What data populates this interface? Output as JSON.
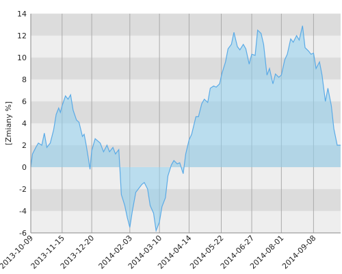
{
  "chart_data": {
    "type": "area",
    "y_label": "[Zmiany %]",
    "x": [
      "2013-10-09",
      "2013-10-11",
      "2013-10-15",
      "2013-10-18",
      "2013-10-22",
      "2013-10-25",
      "2013-10-28",
      "2013-11-01",
      "2013-11-05",
      "2013-11-08",
      "2013-11-11",
      "2013-11-13",
      "2013-11-15",
      "2013-11-19",
      "2013-11-22",
      "2013-11-25",
      "2013-11-28",
      "2013-12-02",
      "2013-12-05",
      "2013-12-09",
      "2013-12-11",
      "2013-12-13",
      "2013-12-16",
      "2013-12-18",
      "2013-12-20",
      "2013-12-24",
      "2013-12-30",
      "2014-01-03",
      "2014-01-07",
      "2014-01-10",
      "2014-01-14",
      "2014-01-17",
      "2014-01-21",
      "2014-01-24",
      "2014-01-28",
      "2014-01-31",
      "2014-02-03",
      "2014-02-06",
      "2014-02-10",
      "2014-02-13",
      "2014-02-17",
      "2014-02-20",
      "2014-02-24",
      "2014-02-27",
      "2014-03-03",
      "2014-03-06",
      "2014-03-10",
      "2014-03-13",
      "2014-03-17",
      "2014-03-20",
      "2014-03-24",
      "2014-03-27",
      "2014-03-31",
      "2014-04-03",
      "2014-04-07",
      "2014-04-10",
      "2014-04-14",
      "2014-04-17",
      "2014-04-22",
      "2014-04-25",
      "2014-04-29",
      "2014-05-02",
      "2014-05-06",
      "2014-05-09",
      "2014-05-13",
      "2014-05-16",
      "2014-05-20",
      "2014-05-23",
      "2014-05-27",
      "2014-05-30",
      "2014-06-03",
      "2014-06-06",
      "2014-06-10",
      "2014-06-13",
      "2014-06-17",
      "2014-06-20",
      "2014-06-24",
      "2014-06-27",
      "2014-07-01",
      "2014-07-04",
      "2014-07-08",
      "2014-07-11",
      "2014-07-15",
      "2014-07-18",
      "2014-07-22",
      "2014-07-25",
      "2014-07-29",
      "2014-08-01",
      "2014-08-05",
      "2014-08-08",
      "2014-08-12",
      "2014-08-15",
      "2014-08-19",
      "2014-08-22",
      "2014-08-26",
      "2014-08-29",
      "2014-09-02",
      "2014-09-05",
      "2014-09-08",
      "2014-09-11",
      "2014-09-15",
      "2014-09-18",
      "2014-09-22",
      "2014-09-25",
      "2014-09-29",
      "2014-10-02",
      "2014-10-06",
      "2014-10-10"
    ],
    "series": [
      {
        "color": "#5aaae6",
        "values": [
          0,
          1.2,
          1.8,
          2.2,
          2.0,
          3.1,
          1.8,
          2.2,
          3.4,
          4.8,
          5.4,
          5.0,
          5.6,
          6.5,
          6.2,
          6.6,
          5.2,
          4.3,
          4.1,
          2.8,
          3.0,
          2.2,
          0.8,
          -0.2,
          1.5,
          2.6,
          2.2,
          1.4,
          2.0,
          1.4,
          1.8,
          1.2,
          1.6,
          -2.5,
          -3.5,
          -4.6,
          -5.5,
          -4.0,
          -2.3,
          -2.0,
          -1.6,
          -1.4,
          -2.0,
          -3.5,
          -4.2,
          -5.8,
          -5.0,
          -3.6,
          -2.8,
          -0.8,
          0.2,
          0.6,
          0.3,
          0.4,
          -0.6,
          1.2,
          2.5,
          3.0,
          4.6,
          4.6,
          5.8,
          6.2,
          5.9,
          7.2,
          7.4,
          7.3,
          7.6,
          8.6,
          9.6,
          10.8,
          11.2,
          12.3,
          11.0,
          10.7,
          11.2,
          10.8,
          9.4,
          10.3,
          10.2,
          12.5,
          12.2,
          11.2,
          8.4,
          9.0,
          7.6,
          8.5,
          8.2,
          8.4,
          9.8,
          10.3,
          11.7,
          11.4,
          12.0,
          11.6,
          12.9,
          10.9,
          10.6,
          10.3,
          10.4,
          9.0,
          9.6,
          8.4,
          6.0,
          7.2,
          5.6,
          3.5,
          2.0,
          2.0
        ]
      }
    ],
    "xlim": [
      "2013-10-09",
      "2014-10-10"
    ],
    "xticks": [
      "2013-10-09",
      "2013-11-15",
      "2013-12-20",
      "2014-02-03",
      "2014-03-10",
      "2014-04-14",
      "2014-05-22",
      "2014-06-27",
      "2014-08-01",
      "2014-09-08"
    ],
    "ylim": [
      -6,
      14
    ],
    "yticks": [
      -6,
      -4,
      -2,
      0,
      2,
      4,
      6,
      8,
      10,
      12,
      14
    ],
    "grid": true
  }
}
